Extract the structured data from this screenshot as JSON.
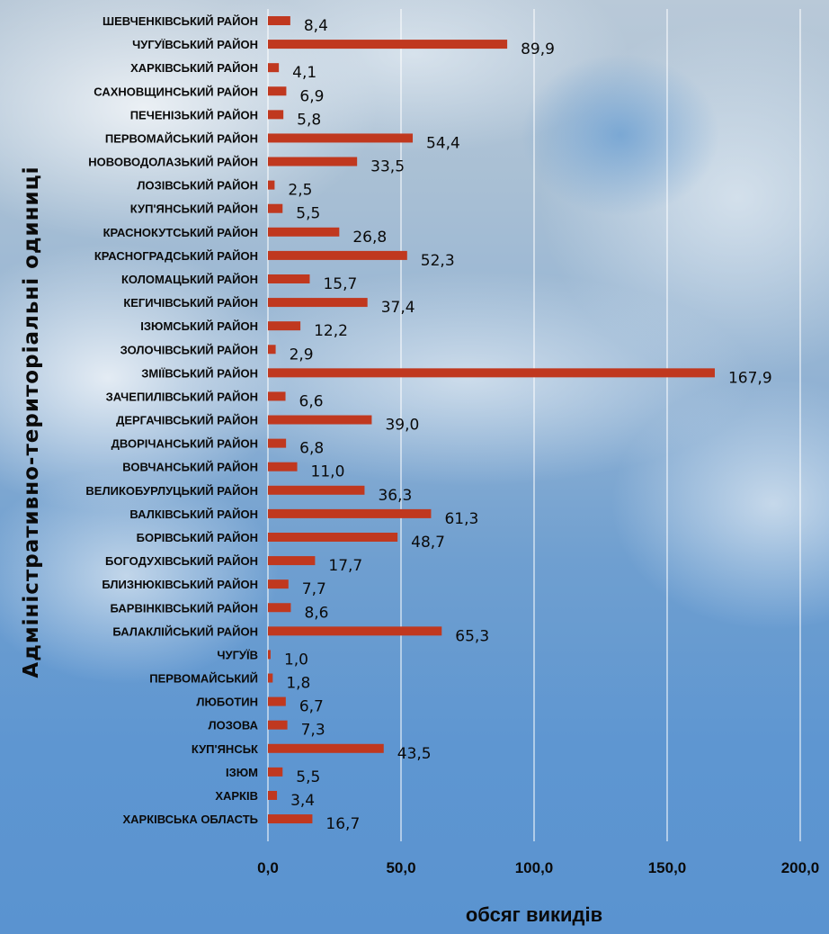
{
  "chart_data": {
    "type": "bar",
    "orientation": "horizontal",
    "xlabel": "обсяг викидів",
    "ylabel": "Адміністративно-територіальні одиниці",
    "xlim": [
      0,
      200
    ],
    "x_ticks": [
      "0,0",
      "50,0",
      "100,0",
      "150,0",
      "200,0"
    ],
    "grid": true,
    "bar_color": "#c0381f",
    "categories": [
      "ШЕВЧЕНКІВСЬКИЙ РАЙОН",
      "ЧУГУЇВСЬКИЙ РАЙОН",
      "ХАРКІВСЬКИЙ РАЙОН",
      "САХНОВЩИНСЬКИЙ РАЙОН",
      "ПЕЧЕНІЗЬКИЙ РАЙОН",
      "ПЕРВОМАЙСЬКИЙ РАЙОН",
      "НОВОВОДОЛАЗЬКИЙ РАЙОН",
      "ЛОЗІВСЬКИЙ РАЙОН",
      "КУП'ЯНСЬКИЙ РАЙОН",
      "КРАСНОКУТСЬКИЙ РАЙОН",
      "КРАСНОГРАДСЬКИЙ РАЙОН",
      "КОЛОМАЦЬКИЙ РАЙОН",
      "КЕГИЧІВСЬКИЙ РАЙОН",
      "ІЗЮМСЬКИЙ РАЙОН",
      "ЗОЛОЧІВСЬКИЙ РАЙОН",
      "ЗМІЇВСЬКИЙ РАЙОН",
      "ЗАЧЕПИЛІВСЬКИЙ РАЙОН",
      "ДЕРГАЧІВСЬКИЙ РАЙОН",
      "ДВОРІЧАНСЬКИЙ РАЙОН",
      "ВОВЧАНСЬКИЙ РАЙОН",
      "ВЕЛИКОБУРЛУЦЬКИЙ РАЙОН",
      "ВАЛКІВСЬКИЙ РАЙОН",
      "БОРІВСЬКИЙ РАЙОН",
      "БОГОДУХІВСЬКИЙ РАЙОН",
      "БЛИЗНЮКІВСЬКИЙ РАЙОН",
      "БАРВІНКІВСЬКИЙ РАЙОН",
      "БАЛАКЛІЙСЬКИЙ РАЙОН",
      "ЧУГУЇВ",
      "ПЕРВОМАЙСЬКИЙ",
      "ЛЮБОТИН",
      "ЛОЗОВА",
      "КУП'ЯНСЬК",
      "ІЗЮМ",
      "ХАРКІВ",
      "ХАРКІВСЬКА ОБЛАСТЬ"
    ],
    "values": [
      8.4,
      89.9,
      4.1,
      6.9,
      5.8,
      54.4,
      33.5,
      2.5,
      5.5,
      26.8,
      52.3,
      15.7,
      37.4,
      12.2,
      2.9,
      167.9,
      6.6,
      39.0,
      6.8,
      11.0,
      36.3,
      61.3,
      48.7,
      17.7,
      7.7,
      8.6,
      65.3,
      1.0,
      1.8,
      6.7,
      7.3,
      43.5,
      5.5,
      3.4,
      16.7
    ],
    "value_labels": [
      "8,4",
      "89,9",
      "4,1",
      "6,9",
      "5,8",
      "54,4",
      "33,5",
      "2,5",
      "5,5",
      "26,8",
      "52,3",
      "15,7",
      "37,4",
      "12,2",
      "2,9",
      "167,9",
      "6,6",
      "39,0",
      "6,8",
      "11,0",
      "36,3",
      "61,3",
      "48,7",
      "17,7",
      "7,7",
      "8,6",
      "65,3",
      "1,0",
      "1,8",
      "6,7",
      "7,3",
      "43,5",
      "5,5",
      "3,4",
      "16,7"
    ]
  }
}
